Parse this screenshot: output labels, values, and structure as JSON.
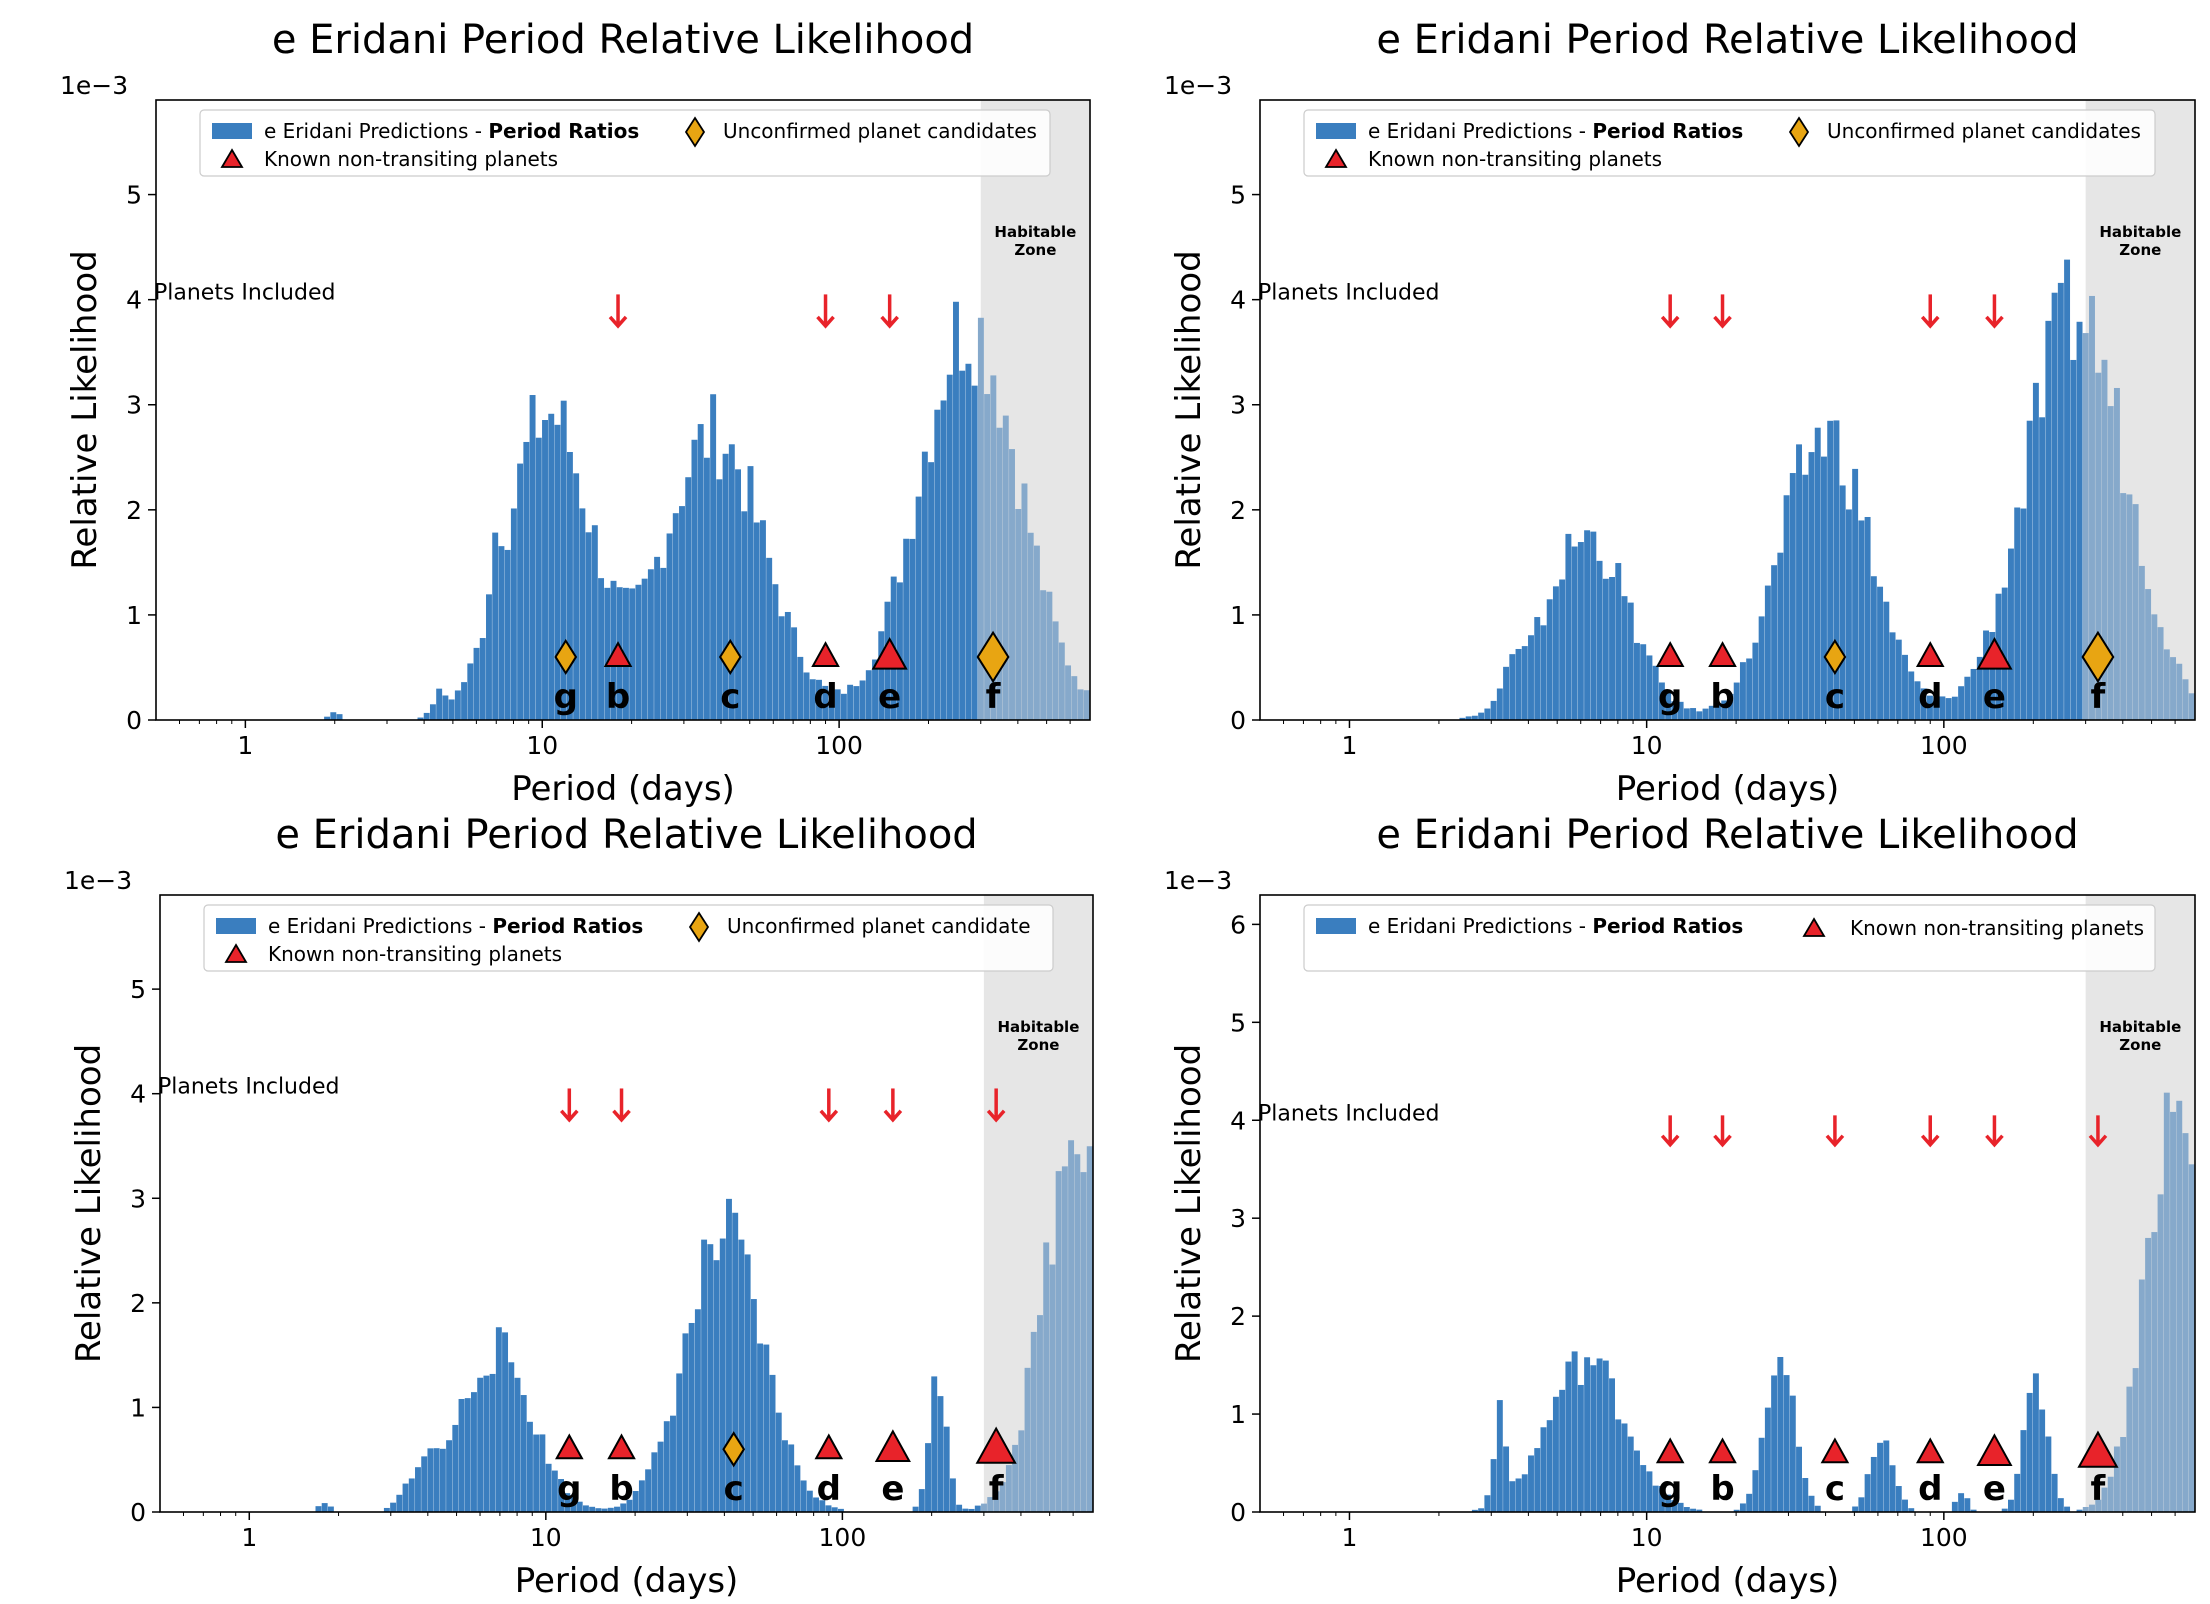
{
  "colors": {
    "bar": "#3a7ebf",
    "bar_hz": "#86a9cb",
    "hz_shade": "#e6e6e6",
    "known": "#e8232a",
    "candidate": "#e8a512",
    "arrow": "#e8232a"
  },
  "chart_data": [
    {
      "type": "bar",
      "title": "e Eridani Period Relative Likelihood",
      "xlabel": "Period (days)",
      "ylabel": "Relative Likelihood",
      "y_multiplier": "1e−3",
      "xscale": "log",
      "xlim": [
        0.5,
        700
      ],
      "ylim": [
        0,
        5.9
      ],
      "xticks": [
        {
          "v": 1,
          "label": "1"
        },
        {
          "v": 10,
          "label": "10"
        },
        {
          "v": 100,
          "label": "100"
        }
      ],
      "yticks": [
        {
          "v": 0,
          "label": "0"
        },
        {
          "v": 1,
          "label": "1"
        },
        {
          "v": 2,
          "label": "2"
        },
        {
          "v": 3,
          "label": "3"
        },
        {
          "v": 4,
          "label": "4"
        },
        {
          "v": 5,
          "label": "5"
        }
      ],
      "habitable_zone": {
        "from": 300,
        "to": 700,
        "label": [
          "Habitable",
          "Zone"
        ]
      },
      "planets_included_label": "Planets Included",
      "legend": {
        "series": "e Eridani Predictions - ",
        "series_bold": "Period Ratios",
        "known": "Known non-transiting planets",
        "candidate": "Unconfirmed planet candidates"
      },
      "included_arrows": [
        18,
        90,
        148
      ],
      "planets": [
        {
          "name": "g",
          "period": 12,
          "kind": "candidate",
          "size": 1.0
        },
        {
          "name": "b",
          "period": 18,
          "kind": "known",
          "size": 1.0
        },
        {
          "name": "c",
          "period": 43,
          "kind": "candidate",
          "size": 1.0
        },
        {
          "name": "d",
          "period": 90,
          "kind": "known",
          "size": 1.0
        },
        {
          "name": "e",
          "period": 148,
          "kind": "known",
          "size": 1.3
        },
        {
          "name": "f",
          "period": 330,
          "kind": "candidate",
          "size": 1.5
        }
      ],
      "peaks": [
        {
          "c": 10.5,
          "s": 0.14,
          "h": 3.0
        },
        {
          "c": 38,
          "s": 0.17,
          "h": 2.8
        },
        {
          "c": 275,
          "s": 0.17,
          "h": 3.9
        },
        {
          "c": 2.0,
          "s": 0.02,
          "h": 0.08
        },
        {
          "c": 4.5,
          "s": 0.02,
          "h": 0.18
        },
        {
          "c": 7.0,
          "s": 0.02,
          "h": 0.55
        }
      ]
    },
    {
      "type": "bar",
      "title": "e Eridani Period Relative Likelihood",
      "xlabel": "Period (days)",
      "ylabel": "Relative Likelihood",
      "y_multiplier": "1e−3",
      "xscale": "log",
      "xlim": [
        0.5,
        700
      ],
      "ylim": [
        0,
        5.9
      ],
      "xticks": [
        {
          "v": 1,
          "label": "1"
        },
        {
          "v": 10,
          "label": "10"
        },
        {
          "v": 100,
          "label": "100"
        }
      ],
      "yticks": [
        {
          "v": 0,
          "label": "0"
        },
        {
          "v": 1,
          "label": "1"
        },
        {
          "v": 2,
          "label": "2"
        },
        {
          "v": 3,
          "label": "3"
        },
        {
          "v": 4,
          "label": "4"
        },
        {
          "v": 5,
          "label": "5"
        }
      ],
      "habitable_zone": {
        "from": 300,
        "to": 700,
        "label": [
          "Habitable",
          "Zone"
        ]
      },
      "planets_included_label": "Planets Included",
      "legend": {
        "series": "e Eridani Predictions - ",
        "series_bold": "Period Ratios",
        "known": "Known non-transiting planets",
        "candidate": "Unconfirmed planet candidates"
      },
      "included_arrows": [
        12,
        18,
        90,
        148
      ],
      "planets": [
        {
          "name": "g",
          "period": 12,
          "kind": "known",
          "size": 1.0
        },
        {
          "name": "b",
          "period": 18,
          "kind": "known",
          "size": 1.0
        },
        {
          "name": "c",
          "period": 43,
          "kind": "candidate",
          "size": 1.0
        },
        {
          "name": "d",
          "period": 90,
          "kind": "known",
          "size": 1.0
        },
        {
          "name": "e",
          "period": 148,
          "kind": "known",
          "size": 1.3
        },
        {
          "name": "f",
          "period": 330,
          "kind": "candidate",
          "size": 1.5
        }
      ],
      "peaks": [
        {
          "c": 6.3,
          "s": 0.14,
          "h": 1.8
        },
        {
          "c": 40,
          "s": 0.15,
          "h": 2.8
        },
        {
          "c": 280,
          "s": 0.17,
          "h": 4.0
        },
        {
          "c": 3.5,
          "s": 0.03,
          "h": 0.25
        }
      ]
    },
    {
      "type": "bar",
      "title": "e Eridani Period Relative Likelihood",
      "xlabel": "Period (days)",
      "ylabel": "Relative Likelihood",
      "y_multiplier": "1e−3",
      "xscale": "log",
      "xlim": [
        0.5,
        700
      ],
      "ylim": [
        0,
        5.9
      ],
      "xticks": [
        {
          "v": 1,
          "label": "1"
        },
        {
          "v": 10,
          "label": "10"
        },
        {
          "v": 100,
          "label": "100"
        }
      ],
      "yticks": [
        {
          "v": 0,
          "label": "0"
        },
        {
          "v": 1,
          "label": "1"
        },
        {
          "v": 2,
          "label": "2"
        },
        {
          "v": 3,
          "label": "3"
        },
        {
          "v": 4,
          "label": "4"
        },
        {
          "v": 5,
          "label": "5"
        }
      ],
      "habitable_zone": {
        "from": 300,
        "to": 700,
        "label": [
          "Habitable",
          "Zone"
        ]
      },
      "planets_included_label": "Planets Included",
      "legend": {
        "series": "e Eridani Predictions - ",
        "series_bold": "Period Ratios",
        "known": "Known non-transiting planets",
        "candidate": "Unconfirmed planet candidate"
      },
      "included_arrows": [
        12,
        18,
        90,
        148,
        330
      ],
      "planets": [
        {
          "name": "g",
          "period": 12,
          "kind": "known",
          "size": 1.0
        },
        {
          "name": "b",
          "period": 18,
          "kind": "known",
          "size": 1.0
        },
        {
          "name": "c",
          "period": 43,
          "kind": "candidate",
          "size": 1.0
        },
        {
          "name": "d",
          "period": 90,
          "kind": "known",
          "size": 1.0
        },
        {
          "name": "e",
          "period": 148,
          "kind": "known",
          "size": 1.3
        },
        {
          "name": "f",
          "period": 330,
          "kind": "known",
          "size": 1.5
        }
      ],
      "peaks": [
        {
          "c": 6.8,
          "s": 0.12,
          "h": 1.6
        },
        {
          "c": 40,
          "s": 0.13,
          "h": 2.7
        },
        {
          "c": 210,
          "s": 0.03,
          "h": 1.3
        },
        {
          "c": 640,
          "s": 0.12,
          "h": 3.9
        },
        {
          "c": 3.8,
          "s": 0.05,
          "h": 0.35
        },
        {
          "c": 1.8,
          "s": 0.02,
          "h": 0.1
        }
      ]
    },
    {
      "type": "bar",
      "title": "e Eridani Period Relative Likelihood",
      "xlabel": "Period (days)",
      "ylabel": "Relative Likelihood",
      "y_multiplier": "1e−3",
      "xscale": "log",
      "xlim": [
        0.5,
        700
      ],
      "ylim": [
        0,
        6.3
      ],
      "xticks": [
        {
          "v": 1,
          "label": "1"
        },
        {
          "v": 10,
          "label": "10"
        },
        {
          "v": 100,
          "label": "100"
        }
      ],
      "yticks": [
        {
          "v": 0,
          "label": "0"
        },
        {
          "v": 1,
          "label": "1"
        },
        {
          "v": 2,
          "label": "2"
        },
        {
          "v": 3,
          "label": "3"
        },
        {
          "v": 4,
          "label": "4"
        },
        {
          "v": 5,
          "label": "5"
        },
        {
          "v": 6,
          "label": "6"
        }
      ],
      "habitable_zone": {
        "from": 300,
        "to": 700,
        "label": [
          "Habitable",
          "Zone"
        ]
      },
      "planets_included_label": "Planets Included",
      "legend": {
        "series": "e Eridani Predictions - ",
        "series_bold": "Period Ratios",
        "known": "Known non-transiting planets",
        "candidate": ""
      },
      "included_arrows": [
        12,
        18,
        43,
        90,
        148,
        330
      ],
      "planets": [
        {
          "name": "g",
          "period": 12,
          "kind": "known",
          "size": 1.0
        },
        {
          "name": "b",
          "period": 18,
          "kind": "known",
          "size": 1.0
        },
        {
          "name": "c",
          "period": 43,
          "kind": "known",
          "size": 1.0
        },
        {
          "name": "d",
          "period": 90,
          "kind": "known",
          "size": 1.0
        },
        {
          "name": "e",
          "period": 148,
          "kind": "known",
          "size": 1.3
        },
        {
          "name": "f",
          "period": 330,
          "kind": "known",
          "size": 1.5
        }
      ],
      "peaks": [
        {
          "c": 6.3,
          "s": 0.13,
          "h": 1.6
        },
        {
          "c": 28,
          "s": 0.05,
          "h": 1.6
        },
        {
          "c": 62,
          "s": 0.04,
          "h": 0.75
        },
        {
          "c": 205,
          "s": 0.04,
          "h": 1.35
        },
        {
          "c": 600,
          "s": 0.1,
          "h": 4.2
        },
        {
          "c": 3.2,
          "s": 0.02,
          "h": 0.9
        },
        {
          "c": 115,
          "s": 0.02,
          "h": 0.2
        }
      ]
    }
  ]
}
